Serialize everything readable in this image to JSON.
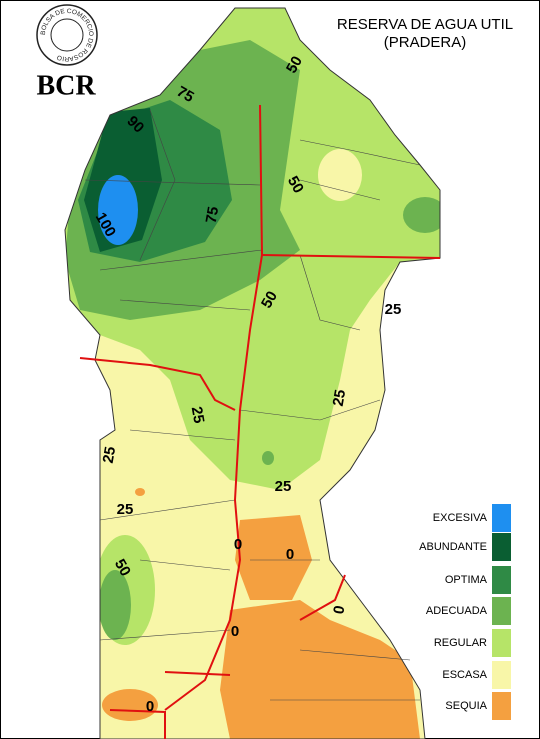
{
  "header": {
    "logo_ring": "BOLSA DE COMERCIO DE ROSARIO",
    "logo": "BCR",
    "title": [
      "RESERVA DE AGUA UTIL",
      "(PRADERA)"
    ]
  },
  "legend": [
    {
      "label": "EXCESIVA",
      "color": "#1e8ff0"
    },
    {
      "label": "ABUNDANTE",
      "color": "#0a5e32"
    },
    {
      "label": "OPTIMA",
      "color": "#2f8a45"
    },
    {
      "label": "ADECUADA",
      "color": "#6cb350"
    },
    {
      "label": "REGULAR",
      "color": "#b6e468"
    },
    {
      "label": "ESCASA",
      "color": "#f8f6a8"
    },
    {
      "label": "SEQUIA",
      "color": "#f4a040"
    }
  ],
  "contour_labels": [
    50,
    75,
    90,
    50,
    75,
    100,
    50,
    25,
    25,
    25,
    25,
    25,
    25,
    0,
    0,
    50,
    0,
    0,
    0
  ]
}
